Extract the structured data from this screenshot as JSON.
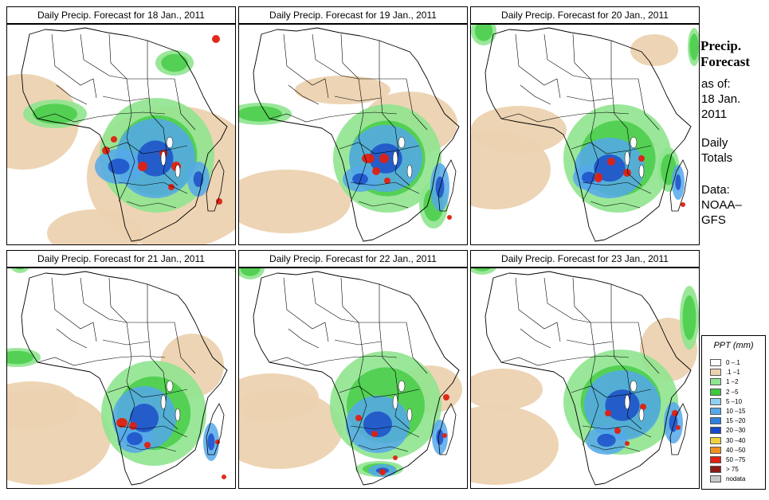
{
  "panels": [
    {
      "title": "Daily Precip. Forecast for  18 Jan., 2011",
      "scene": 0
    },
    {
      "title": "Daily Precip. Forecast for  19 Jan., 2011",
      "scene": 1
    },
    {
      "title": "Daily Precip. Forecast for  20 Jan., 2011",
      "scene": 2
    },
    {
      "title": "Daily Precip. Forecast for  21 Jan., 2011",
      "scene": 3
    },
    {
      "title": "Daily Precip. Forecast for  22 Jan., 2011",
      "scene": 4
    },
    {
      "title": "Daily Precip. Forecast for  23 Jan., 2011",
      "scene": 5
    }
  ],
  "sidebar": {
    "title_line1": "Precip.",
    "title_line2": "Forecast",
    "asof_line1": "as of:",
    "asof_line2": "18 Jan.",
    "asof_line3": "2011",
    "totals_line1": "Daily",
    "totals_line2": "Totals",
    "source_line1": "Data:",
    "source_line2": "NOAA–",
    "source_line3": "GFS"
  },
  "legend": {
    "title": "PPT (mm)",
    "entries": [
      {
        "label": "0 –.1",
        "color": "#ffffff"
      },
      {
        "label": ".1 –1",
        "color": "#ecd2b0"
      },
      {
        "label": "1 –2",
        "color": "#8fe48f"
      },
      {
        "label": "2 –5",
        "color": "#3cc93c"
      },
      {
        "label": "5 –10",
        "color": "#8fd0f2"
      },
      {
        "label": "10 –15",
        "color": "#55a8ea"
      },
      {
        "label": "15 –20",
        "color": "#2f7fe0"
      },
      {
        "label": "20 –30",
        "color": "#1848c8"
      },
      {
        "label": "30 –40",
        "color": "#f0d040"
      },
      {
        "label": "40 –50",
        "color": "#f09020"
      },
      {
        "label": "50 –75",
        "color": "#e02010"
      },
      {
        "label": "> 75",
        "color": "#8c1a14"
      },
      {
        "label": "nodata",
        "color": "#c8c8c8"
      }
    ]
  }
}
